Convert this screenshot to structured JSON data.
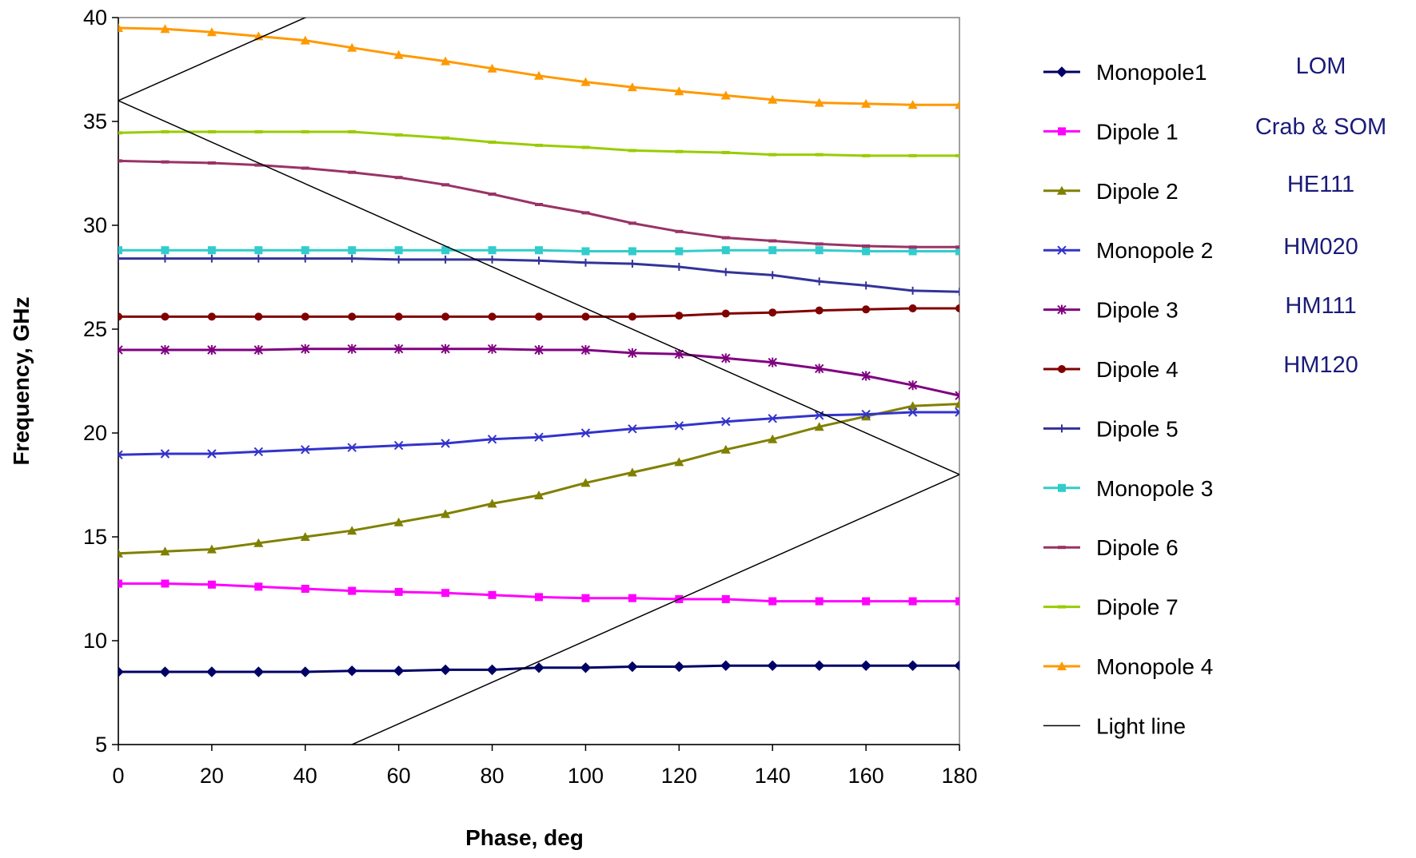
{
  "chart_data": {
    "type": "line",
    "title": "",
    "xlabel": "Phase, deg",
    "ylabel": "Frequency, GHz",
    "xlim": [
      0,
      180
    ],
    "ylim": [
      5,
      40
    ],
    "x_ticks": [
      "0",
      "20",
      "40",
      "60",
      "80",
      "100",
      "120",
      "140",
      "160",
      "180"
    ],
    "y_ticks": [
      "5",
      "10",
      "15",
      "20",
      "25",
      "30",
      "35",
      "40"
    ],
    "grid": false,
    "legend_position": "right",
    "x": [
      0,
      10,
      20,
      30,
      40,
      50,
      60,
      70,
      80,
      90,
      100,
      110,
      120,
      130,
      140,
      150,
      160,
      170,
      180
    ],
    "series": [
      {
        "name": "Monopole1",
        "color": "#000066",
        "marker": "diamond",
        "values": [
          8.5,
          8.5,
          8.5,
          8.5,
          8.5,
          8.55,
          8.55,
          8.6,
          8.6,
          8.7,
          8.7,
          8.75,
          8.75,
          8.8,
          8.8,
          8.8,
          8.8,
          8.8,
          8.8
        ]
      },
      {
        "name": "Dipole 1",
        "color": "#ff00ff",
        "marker": "square",
        "values": [
          12.75,
          12.75,
          12.7,
          12.6,
          12.5,
          12.4,
          12.35,
          12.3,
          12.2,
          12.1,
          12.05,
          12.05,
          12.0,
          12.0,
          11.9,
          11.9,
          11.9,
          11.9,
          11.9
        ]
      },
      {
        "name": "Dipole 2",
        "color": "#808000",
        "marker": "triangle",
        "values": [
          14.2,
          14.3,
          14.4,
          14.7,
          15.0,
          15.3,
          15.7,
          16.1,
          16.6,
          17.0,
          17.6,
          18.1,
          18.6,
          19.2,
          19.7,
          20.3,
          20.8,
          21.3,
          21.4
        ]
      },
      {
        "name": "Monopole 2",
        "color": "#3333cc",
        "marker": "x",
        "values": [
          18.95,
          19.0,
          19.0,
          19.1,
          19.2,
          19.3,
          19.4,
          19.5,
          19.7,
          19.8,
          20.0,
          20.2,
          20.35,
          20.55,
          20.7,
          20.85,
          20.9,
          21.0,
          21.0
        ]
      },
      {
        "name": "Dipole 3",
        "color": "#800080",
        "marker": "star",
        "values": [
          24.0,
          24.0,
          24.0,
          24.0,
          24.05,
          24.05,
          24.05,
          24.05,
          24.05,
          24.0,
          24.0,
          23.85,
          23.8,
          23.6,
          23.4,
          23.1,
          22.75,
          22.3,
          21.8
        ]
      },
      {
        "name": "Dipole 4",
        "color": "#800000",
        "marker": "circle",
        "values": [
          25.6,
          25.6,
          25.6,
          25.6,
          25.6,
          25.6,
          25.6,
          25.6,
          25.6,
          25.6,
          25.6,
          25.6,
          25.65,
          25.75,
          25.8,
          25.9,
          25.95,
          26.0,
          26.0
        ]
      },
      {
        "name": "Dipole 5",
        "color": "#333399",
        "marker": "plus",
        "values": [
          28.4,
          28.4,
          28.4,
          28.4,
          28.4,
          28.4,
          28.35,
          28.35,
          28.35,
          28.3,
          28.2,
          28.15,
          28.0,
          27.75,
          27.6,
          27.3,
          27.1,
          26.85,
          26.8
        ]
      },
      {
        "name": "Monopole 3",
        "color": "#33cccc",
        "marker": "square",
        "values": [
          28.8,
          28.8,
          28.8,
          28.8,
          28.8,
          28.8,
          28.8,
          28.8,
          28.8,
          28.8,
          28.75,
          28.75,
          28.75,
          28.8,
          28.8,
          28.8,
          28.75,
          28.75,
          28.75
        ]
      },
      {
        "name": "Dipole 6",
        "color": "#993366",
        "marker": "dash",
        "values": [
          33.1,
          33.05,
          33.0,
          32.9,
          32.75,
          32.55,
          32.3,
          31.95,
          31.5,
          31.0,
          30.6,
          30.1,
          29.7,
          29.4,
          29.25,
          29.1,
          29.0,
          28.95,
          28.95
        ]
      },
      {
        "name": "Dipole 7",
        "color": "#99cc00",
        "marker": "dash",
        "values": [
          34.45,
          34.5,
          34.5,
          34.5,
          34.5,
          34.5,
          34.35,
          34.2,
          34.0,
          33.85,
          33.75,
          33.6,
          33.55,
          33.5,
          33.4,
          33.4,
          33.35,
          33.35,
          33.35
        ]
      },
      {
        "name": "Monopole 4",
        "color": "#ff9900",
        "marker": "triangle",
        "values": [
          39.5,
          39.45,
          39.3,
          39.1,
          38.9,
          38.55,
          38.2,
          37.9,
          37.55,
          37.2,
          36.9,
          36.65,
          36.45,
          36.25,
          36.05,
          35.9,
          35.85,
          35.8,
          35.8
        ]
      },
      {
        "name": "Light line",
        "color": "#000000",
        "marker": "none",
        "lines": [
          {
            "x": [
              0,
              42
            ],
            "y": [
              36,
              40.2
            ]
          },
          {
            "x": [
              0,
              180
            ],
            "y": [
              36,
              18
            ]
          },
          {
            "x": [
              48,
              180
            ],
            "y": [
              4.8,
              18
            ]
          }
        ]
      }
    ],
    "annotations": [
      "LOM",
      "Crab & SOM",
      "HE111",
      "HM020",
      "HM111",
      "HM120"
    ]
  }
}
